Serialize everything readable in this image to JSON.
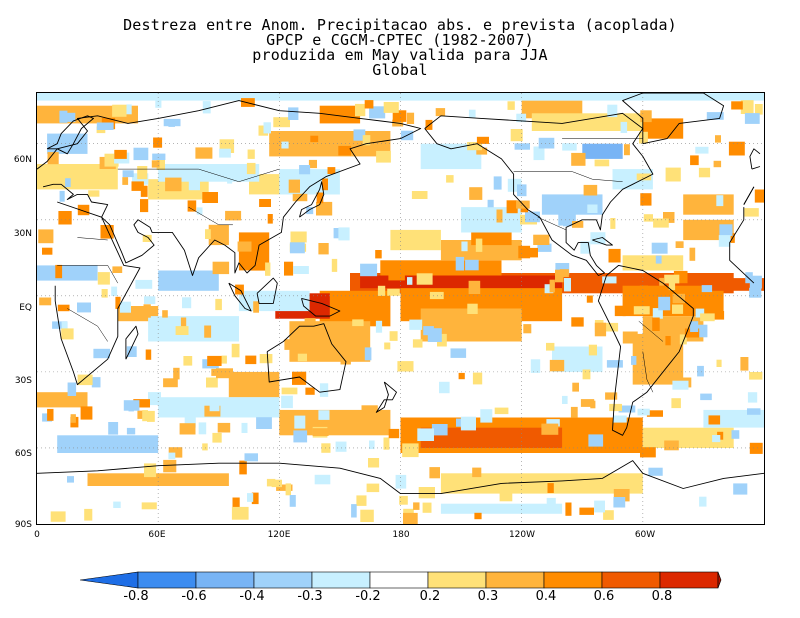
{
  "title": {
    "line1": "Destreza entre Anom. Precipitacao abs. e prevista (acoplada)",
    "line2": "GPCP e CGCM-CPTEC (1982-2007)",
    "line3": "produzida  em May valida para JJA",
    "line4": "Global"
  },
  "map": {
    "lat_labels": [
      "60N",
      "30N",
      "EQ",
      "30S",
      "60S",
      "90S"
    ],
    "lon_labels": [
      "0",
      "60E",
      "120E",
      "180",
      "120W",
      "60W"
    ],
    "lat_min": -90,
    "lat_max": 90,
    "lon_min": 0,
    "lon_max": 360
  },
  "colorbar": {
    "labels": [
      "-0.8",
      "-0.6",
      "-0.4",
      "-0.3",
      "-0.2",
      "0.2",
      "0.3",
      "0.4",
      "0.6",
      "0.8"
    ],
    "colors": [
      "#1e6ee6",
      "#3c8cf0",
      "#78b4f5",
      "#a0d2fa",
      "#c8f0ff",
      "#ffffff",
      "#ffe178",
      "#ffb43c",
      "#ff8c00",
      "#f05a00",
      "#dc2800",
      "#b41400"
    ]
  },
  "legend_colors": {
    "neg_strong": "#3c8cf0",
    "neg_mid": "#78b4f5",
    "neg_light": "#a0d2fa",
    "neg_faint": "#c8f0ff",
    "pos_faint": "#ffe178",
    "pos_light": "#ffb43c",
    "pos_mid": "#ff8c00",
    "pos_strong": "#f05a00",
    "pos_max": "#dc2800"
  }
}
